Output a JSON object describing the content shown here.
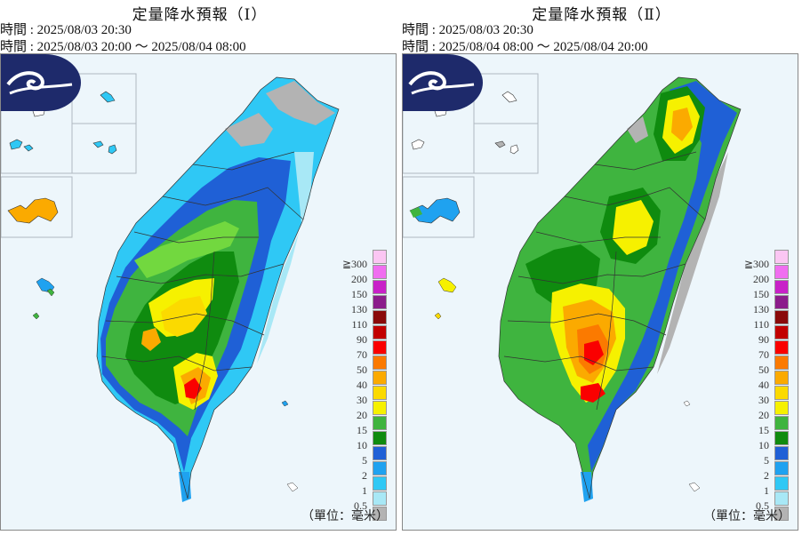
{
  "panels": [
    {
      "title": "定量降水預報（Ⅰ）",
      "issue_line": "時間 : 2025/08/03 20:30",
      "valid_line": "時間 : 2025/08/03 20:00 ～ 2025/08/04 08:00",
      "unit_label": "（單位：毫米）"
    },
    {
      "title": "定量降水預報（Ⅱ）",
      "issue_line": "時間 : 2025/08/03 20:30",
      "valid_line": "時間 : 2025/08/04 08:00 ～ 2025/08/04 20:00",
      "unit_label": "（單位：毫米）"
    }
  ],
  "legend": {
    "labels": [
      "≧300",
      "200",
      "150",
      "130",
      "110",
      "90",
      "70",
      "50",
      "40",
      "30",
      "20",
      "15",
      "10",
      "5",
      "2",
      "1",
      "0.5"
    ],
    "colors": [
      "#fbc6f3",
      "#f06ef0",
      "#c821c8",
      "#8b1c8b",
      "#8a0a0a",
      "#c20000",
      "#fa0000",
      "#fb7a00",
      "#fbaa00",
      "#fbda00",
      "#f6f100",
      "#3fb43f",
      "#0f8b0f",
      "#1f60d6",
      "#1fa2f0",
      "#2fc8f5",
      "#a8e8f6",
      "#b3b3b3"
    ]
  },
  "colors": {
    "sea": "#edf6fb",
    "gray": "#b3b3b3",
    "cyan": "#a8e8f6",
    "lightblue": "#2fc8f5",
    "blue": "#1fa2f0",
    "darkblue": "#1f60d6",
    "darkgreen": "#0f8b0f",
    "green": "#3fb43f",
    "lime": "#72d83f",
    "yellow": "#f6f100",
    "gold": "#fbda00",
    "orange": "#fbaa00",
    "darkorange": "#fb7a00",
    "red": "#fa0000"
  }
}
